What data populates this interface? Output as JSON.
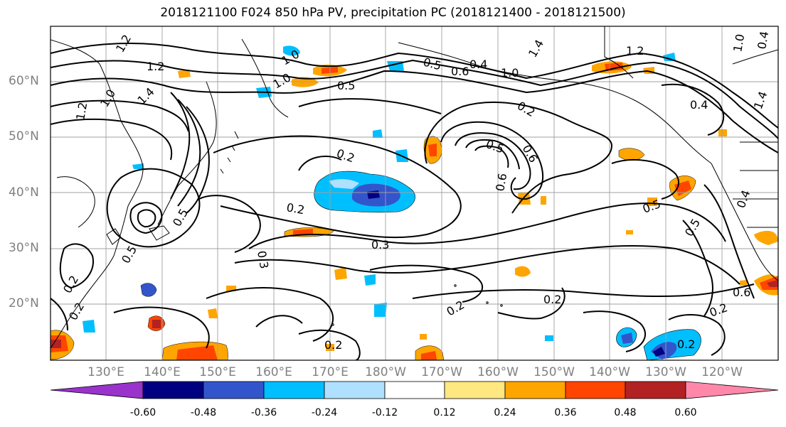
{
  "title": "2018121100 F024 850 hPa PV, precipitation PC (2018121400 - 2018121500)",
  "lat_labels": [
    "60°N",
    "50°N",
    "40°N",
    "30°N",
    "20°N"
  ],
  "lon_labels": [
    "130°E",
    "140°E",
    "150°E",
    "160°E",
    "170°E",
    "180°W",
    "170°W",
    "160°W",
    "150°W",
    "140°W",
    "130°W",
    "120°W"
  ],
  "contour_labels": [
    "1.2",
    "1.2",
    "1.0",
    "1.4",
    "1.2",
    "1.0",
    "1.0",
    "0.5",
    "0.5",
    "0.6",
    "0.4",
    "1.0",
    "0.2",
    "1.4",
    "1.2",
    "1.0",
    "0.4",
    "1.4",
    "0.2",
    "0.5",
    "0.6",
    "0.6",
    "0.2",
    "0.3",
    "0.3",
    "0.5",
    "0.5",
    "0.5",
    "0.4",
    "0.5",
    "0.2",
    "0.2",
    "0.2",
    "0.6",
    "0.2",
    "0.2",
    "0.2",
    "0.2",
    "0.4"
  ],
  "colorbar": {
    "colors": [
      "#9933cc",
      "#000080",
      "#3355cc",
      "#00bfff",
      "#b0e0ff",
      "#ffffff",
      "#ffe880",
      "#ffa500",
      "#ff4500",
      "#b22222",
      "#ff88aa"
    ],
    "ticks": [
      "-0.60",
      "-0.48",
      "-0.36",
      "-0.24",
      "-0.12",
      "0.12",
      "0.24",
      "0.36",
      "0.48",
      "0.60"
    ]
  }
}
